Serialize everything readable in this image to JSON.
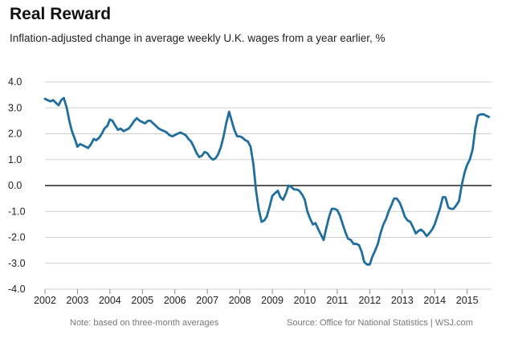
{
  "title": "Real Reward",
  "subtitle": "Inflation-adjusted change in average weekly U.K. wages from a year earlier, %",
  "note": "Note: based on three-month averages",
  "source": "Source: Office for National Statistics  |  WSJ.com",
  "colors": {
    "line": "#1f6e9e",
    "grid": "#d0d0d0",
    "zero": "#222222",
    "text": "#222222",
    "muted": "#777777"
  },
  "chart_data": {
    "type": "line",
    "title": "Real Reward",
    "subtitle": "Inflation-adjusted change in average weekly U.K. wages from a year earlier, %",
    "xlabel": "",
    "ylabel": "",
    "ylim": [
      -4.0,
      4.0
    ],
    "xlim": [
      2002,
      2015.75
    ],
    "y_ticks": [
      "4.0",
      "3.0",
      "2.0",
      "1.0",
      "0.0",
      "-1.0",
      "-2.0",
      "-3.0",
      "-4.0"
    ],
    "x_ticks": [
      "2002",
      "2003",
      "2004",
      "2005",
      "2006",
      "2007",
      "2008",
      "2009",
      "2010",
      "2011",
      "2012",
      "2013",
      "2014",
      "2015"
    ],
    "grid": "horizontal",
    "series": [
      {
        "x": [
          2002.0,
          2002.08,
          2002.17,
          2002.25,
          2002.33,
          2002.42,
          2002.5,
          2002.58,
          2002.67,
          2002.75,
          2002.83,
          2002.92,
          2003.0,
          2003.08,
          2003.17,
          2003.25,
          2003.33,
          2003.42,
          2003.5,
          2003.58,
          2003.67,
          2003.75,
          2003.83,
          2003.92,
          2004.0,
          2004.08,
          2004.17,
          2004.25,
          2004.33,
          2004.42,
          2004.5,
          2004.58,
          2004.67,
          2004.75,
          2004.83,
          2004.92,
          2005.0,
          2005.08,
          2005.17,
          2005.25,
          2005.33,
          2005.42,
          2005.5,
          2005.58,
          2005.67,
          2005.75,
          2005.83,
          2005.92,
          2006.0,
          2006.08,
          2006.17,
          2006.25,
          2006.33,
          2006.42,
          2006.5,
          2006.58,
          2006.67,
          2006.75,
          2006.83,
          2006.92,
          2007.0,
          2007.08,
          2007.17,
          2007.25,
          2007.33,
          2007.42,
          2007.5,
          2007.58,
          2007.67,
          2007.75,
          2007.83,
          2007.92,
          2008.0,
          2008.08,
          2008.17,
          2008.25,
          2008.33,
          2008.42,
          2008.5,
          2008.58,
          2008.67,
          2008.75,
          2008.83,
          2008.92,
          2009.0,
          2009.08,
          2009.17,
          2009.25,
          2009.33,
          2009.42,
          2009.5,
          2009.58,
          2009.67,
          2009.75,
          2009.83,
          2009.92,
          2010.0,
          2010.08,
          2010.17,
          2010.25,
          2010.33,
          2010.42,
          2010.5,
          2010.58,
          2010.67,
          2010.75,
          2010.83,
          2010.92,
          2011.0,
          2011.08,
          2011.17,
          2011.25,
          2011.33,
          2011.42,
          2011.5,
          2011.58,
          2011.67,
          2011.75,
          2011.83,
          2011.92,
          2012.0,
          2012.08,
          2012.17,
          2012.25,
          2012.33,
          2012.42,
          2012.5,
          2012.58,
          2012.67,
          2012.75,
          2012.83,
          2012.92,
          2013.0,
          2013.08,
          2013.17,
          2013.25,
          2013.33,
          2013.42,
          2013.5,
          2013.58,
          2013.67,
          2013.75,
          2013.83,
          2013.92,
          2014.0,
          2014.08,
          2014.17,
          2014.25,
          2014.33,
          2014.42,
          2014.5,
          2014.58,
          2014.67,
          2014.75,
          2014.83,
          2014.92,
          2015.0,
          2015.08,
          2015.17,
          2015.25,
          2015.33,
          2015.42,
          2015.5,
          2015.58,
          2015.67
        ],
        "values": [
          3.35,
          3.3,
          3.25,
          3.3,
          3.2,
          3.1,
          3.3,
          3.38,
          3.0,
          2.5,
          2.1,
          1.8,
          1.5,
          1.6,
          1.55,
          1.5,
          1.45,
          1.6,
          1.8,
          1.75,
          1.85,
          2.0,
          2.2,
          2.3,
          2.55,
          2.5,
          2.3,
          2.15,
          2.2,
          2.1,
          2.15,
          2.2,
          2.35,
          2.5,
          2.6,
          2.5,
          2.45,
          2.4,
          2.5,
          2.5,
          2.4,
          2.3,
          2.2,
          2.15,
          2.1,
          2.05,
          1.95,
          1.9,
          1.95,
          2.0,
          2.05,
          2.0,
          1.95,
          1.8,
          1.7,
          1.5,
          1.25,
          1.1,
          1.15,
          1.3,
          1.25,
          1.1,
          1.0,
          1.05,
          1.2,
          1.5,
          1.9,
          2.4,
          2.85,
          2.5,
          2.15,
          1.9,
          1.9,
          1.85,
          1.75,
          1.7,
          1.5,
          0.8,
          -0.2,
          -0.9,
          -1.4,
          -1.35,
          -1.2,
          -0.8,
          -0.4,
          -0.3,
          -0.2,
          -0.45,
          -0.55,
          -0.3,
          0.0,
          -0.05,
          -0.15,
          -0.15,
          -0.2,
          -0.35,
          -0.55,
          -1.0,
          -1.3,
          -1.5,
          -1.45,
          -1.7,
          -1.9,
          -2.1,
          -1.6,
          -1.2,
          -0.9,
          -0.9,
          -0.95,
          -1.15,
          -1.5,
          -1.8,
          -2.05,
          -2.1,
          -2.25,
          -2.25,
          -2.3,
          -2.55,
          -2.95,
          -3.05,
          -3.05,
          -2.75,
          -2.5,
          -2.25,
          -1.85,
          -1.5,
          -1.3,
          -1.0,
          -0.75,
          -0.5,
          -0.5,
          -0.65,
          -0.9,
          -1.2,
          -1.35,
          -1.4,
          -1.6,
          -1.85,
          -1.75,
          -1.7,
          -1.8,
          -1.95,
          -1.85,
          -1.7,
          -1.5,
          -1.2,
          -0.85,
          -0.45,
          -0.45,
          -0.85,
          -0.9,
          -0.9,
          -0.75,
          -0.6,
          0.0,
          0.5,
          0.8,
          1.0,
          1.4,
          2.2,
          2.7,
          2.75,
          2.75,
          2.7,
          2.65
        ]
      }
    ]
  }
}
